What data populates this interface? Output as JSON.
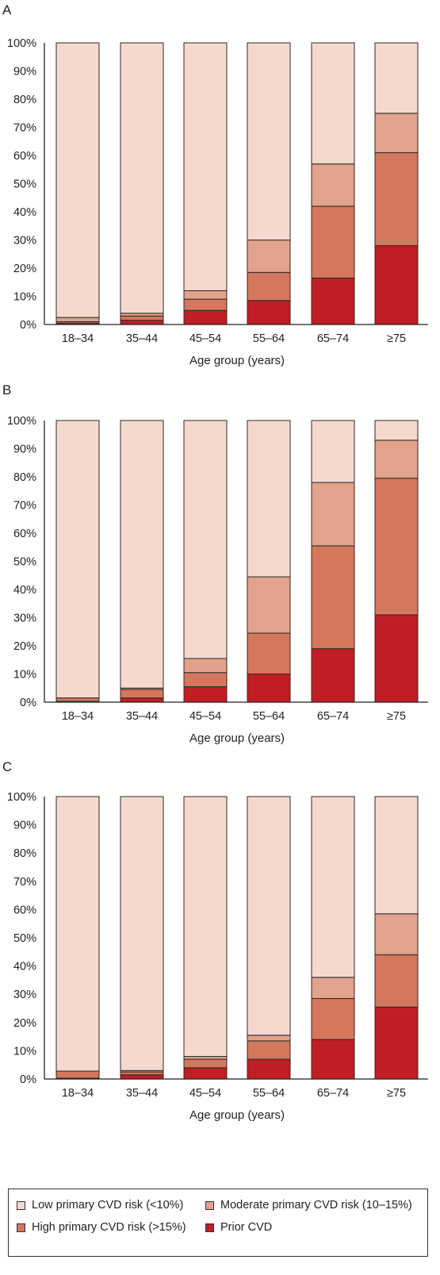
{
  "colors": {
    "low": "#f5d9cf",
    "moderate": "#e2a28b",
    "high": "#d4775c",
    "prior": "#bf1e24"
  },
  "legend": [
    {
      "key": "low",
      "label": "Low primary CVD risk (<10%)"
    },
    {
      "key": "moderate",
      "label": "Moderate primary CVD risk (10–15%)"
    },
    {
      "key": "high",
      "label": "High primary CVD risk (>15%)"
    },
    {
      "key": "prior",
      "label": "Prior CVD"
    }
  ],
  "chart_data": [
    {
      "type": "bar",
      "stacked": true,
      "panel_label": "A",
      "xlabel": "Age group (years)",
      "ylabel": "",
      "ylim": [
        0,
        100
      ],
      "yticks": [
        "0%",
        "10%",
        "20%",
        "30%",
        "40%",
        "50%",
        "60%",
        "70%",
        "80%",
        "90%",
        "100%"
      ],
      "categories": [
        "18–34",
        "35–44",
        "45–54",
        "55–64",
        "65–74",
        "≥75"
      ],
      "series": [
        {
          "name": "Prior CVD",
          "key": "prior",
          "values": [
            0.5,
            1.5,
            5,
            8.5,
            16.5,
            28
          ]
        },
        {
          "name": "High primary CVD risk (>15%)",
          "key": "high",
          "values": [
            0.5,
            1.5,
            4,
            10,
            25.5,
            33
          ]
        },
        {
          "name": "Moderate primary CVD risk (10–15%)",
          "key": "moderate",
          "values": [
            1.5,
            1,
            3,
            11.5,
            15,
            14
          ]
        },
        {
          "name": "Low primary CVD risk (<10%)",
          "key": "low",
          "values": [
            97.5,
            96,
            88,
            70,
            43,
            25
          ]
        }
      ]
    },
    {
      "type": "bar",
      "stacked": true,
      "panel_label": "B",
      "xlabel": "Age group (years)",
      "ylabel": "",
      "ylim": [
        0,
        100
      ],
      "yticks": [
        "0%",
        "10%",
        "20%",
        "30%",
        "40%",
        "50%",
        "60%",
        "70%",
        "80%",
        "90%",
        "100%"
      ],
      "categories": [
        "18–34",
        "35–44",
        "45–54",
        "55–64",
        "65–74",
        "≥75"
      ],
      "series": [
        {
          "name": "Prior CVD",
          "key": "prior",
          "values": [
            0.3,
            1.5,
            5.5,
            10,
            19,
            31
          ]
        },
        {
          "name": "High primary CVD risk (>15%)",
          "key": "high",
          "values": [
            1.2,
            3,
            5,
            14.5,
            36.5,
            48.5
          ]
        },
        {
          "name": "Moderate primary CVD risk (10–15%)",
          "key": "moderate",
          "values": [
            0,
            0.5,
            5,
            20,
            22.5,
            13.5
          ]
        },
        {
          "name": "Low primary CVD risk (<10%)",
          "key": "low",
          "values": [
            98.5,
            95,
            84.5,
            55.5,
            22,
            7
          ]
        }
      ]
    },
    {
      "type": "bar",
      "stacked": true,
      "panel_label": "C",
      "xlabel": "Age group (years)",
      "ylabel": "",
      "ylim": [
        0,
        100
      ],
      "yticks": [
        "0%",
        "10%",
        "20%",
        "30%",
        "40%",
        "50%",
        "60%",
        "70%",
        "80%",
        "90%",
        "100%"
      ],
      "categories": [
        "18–34",
        "35–44",
        "45–54",
        "55–64",
        "65–74",
        "≥75"
      ],
      "series": [
        {
          "name": "Prior CVD",
          "key": "prior",
          "values": [
            0.3,
            1.5,
            4,
            7,
            14,
            25.5
          ]
        },
        {
          "name": "High primary CVD risk (>15%)",
          "key": "high",
          "values": [
            2.5,
            1,
            3,
            6.5,
            14.5,
            18.5
          ]
        },
        {
          "name": "Moderate primary CVD risk (10–15%)",
          "key": "moderate",
          "values": [
            0,
            0.5,
            1,
            2,
            7.5,
            14.5
          ]
        },
        {
          "name": "Low primary CVD risk (<10%)",
          "key": "low",
          "values": [
            97.2,
            97,
            92,
            84.5,
            64,
            41.5
          ]
        }
      ]
    }
  ]
}
